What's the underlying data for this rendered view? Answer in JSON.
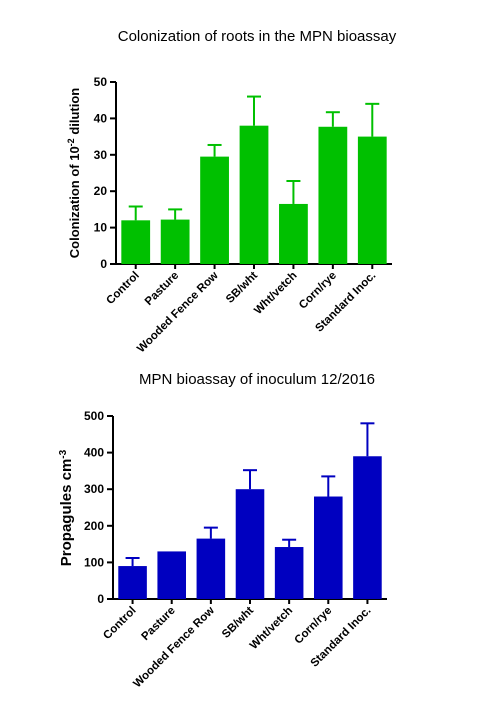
{
  "chart_data": [
    {
      "type": "bar",
      "title": "Colonization of roots in the MPN bioassay",
      "ylabel": {
        "prefix": "Colonization of 10",
        "sup": "-2",
        "suffix": " dilution"
      },
      "categories": [
        "Control",
        "Pasture",
        "Wooded Fence Row",
        "SB/wht",
        "Wht/vetch",
        "Corn/rye",
        "Standard Inoc."
      ],
      "values": [
        12,
        12.2,
        29.5,
        38,
        16.5,
        37.7,
        35
      ],
      "error": [
        3.8,
        2.8,
        3.2,
        8,
        6.3,
        4,
        9
      ],
      "ylim": [
        0,
        50
      ],
      "yticks": [
        0,
        10,
        20,
        30,
        40,
        50
      ],
      "color": "#00C000"
    },
    {
      "type": "bar",
      "title": "MPN bioassay of inoculum 12/2016",
      "ylabel": {
        "prefix": "Propagules cm",
        "sup": "-3",
        "suffix": ""
      },
      "categories": [
        "Control",
        "Pasture",
        "Wooded Fence Row",
        "SB/wht",
        "Wht/vetch",
        "Corn/rye",
        "Standard Inoc."
      ],
      "values": [
        90,
        130,
        165,
        300,
        142,
        280,
        390
      ],
      "error": [
        22,
        0,
        30,
        52,
        20,
        55,
        90
      ],
      "ylim": [
        0,
        500
      ],
      "yticks": [
        0,
        100,
        200,
        300,
        400,
        500
      ],
      "color": "#0000C0"
    }
  ]
}
